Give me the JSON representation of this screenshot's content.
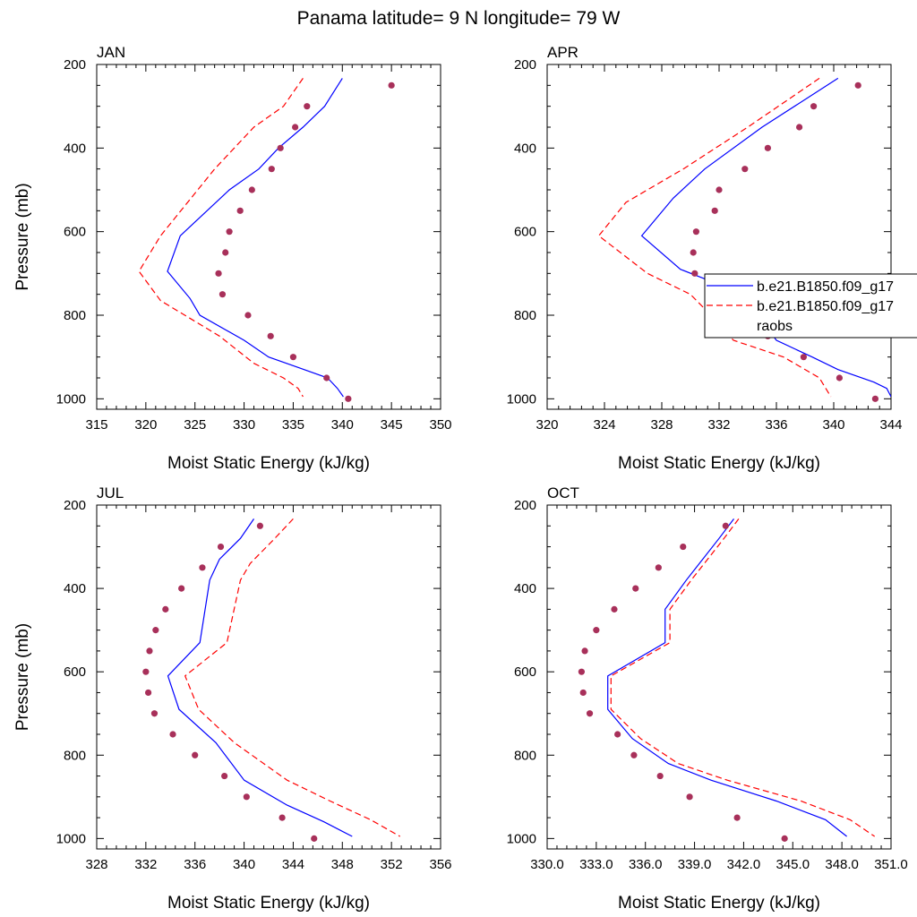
{
  "figure_title": "Panama  latitude= 9 N longitude= 79 W",
  "legend": {
    "entries": [
      {
        "label": "b.e21.B1850.f09_g17",
        "color": "#0000ff",
        "style": "solid"
      },
      {
        "label": "b.e21.B1850.f09_g17",
        "color": "#ff0000",
        "style": "dashed"
      },
      {
        "label": "raobs",
        "color": "#a8305a",
        "style": "markers"
      }
    ]
  },
  "chart_data": [
    {
      "type": "line",
      "title": "JAN",
      "xlabel": "Moist Static Energy (kJ/kg)",
      "ylabel": "Pressure (mb)",
      "xlim": [
        315,
        350
      ],
      "ylim": [
        1025,
        200
      ],
      "x_ticks": [
        315,
        320,
        325,
        330,
        335,
        340,
        345,
        350
      ],
      "x_tick_labels": [
        "315",
        "320",
        "325",
        "330",
        "335",
        "340",
        "345",
        "350"
      ],
      "y_ticks": [
        200,
        400,
        600,
        800,
        1000
      ],
      "y_tick_labels": [
        "200",
        "400",
        "600",
        "800",
        "1000"
      ],
      "series": [
        {
          "style": "solid",
          "color": "#0000ff",
          "x": [
            340.0,
            338.2,
            336.0,
            333.5,
            331.5,
            328.5,
            323.5,
            322.2,
            324.5,
            325.5,
            330.0,
            332.5,
            335.5,
            338.5,
            339.5,
            340.1
          ],
          "y": [
            233,
            300,
            350,
            400,
            450,
            500,
            610,
            695,
            760,
            800,
            860,
            900,
            925,
            950,
            975,
            995
          ]
        },
        {
          "style": "dashed",
          "color": "#ff0000",
          "x": [
            336.0,
            334.0,
            331.0,
            329.0,
            327.0,
            321.5,
            319.3,
            321.5,
            327.5,
            331.0,
            334.0,
            335.5,
            336.0
          ],
          "y": [
            233,
            300,
            350,
            400,
            450,
            610,
            695,
            765,
            850,
            915,
            950,
            975,
            995
          ]
        },
        {
          "style": "markers",
          "color": "#a8305a",
          "x": [
            345.0,
            336.4,
            335.2,
            333.7,
            332.8,
            330.8,
            329.6,
            328.5,
            328.1,
            327.4,
            327.8,
            330.4,
            332.7,
            335.0,
            338.4,
            340.6
          ],
          "y": [
            250,
            300,
            350,
            400,
            450,
            500,
            550,
            600,
            650,
            700,
            750,
            800,
            850,
            900,
            950,
            1000
          ]
        }
      ]
    },
    {
      "type": "line",
      "title": "APR",
      "xlabel": "Moist Static Energy (kJ/kg)",
      "ylabel": "",
      "xlim": [
        320,
        344
      ],
      "ylim": [
        1025,
        200
      ],
      "x_ticks": [
        320,
        324,
        328,
        332,
        336,
        340,
        344
      ],
      "x_tick_labels": [
        "320",
        "324",
        "328",
        "332",
        "336",
        "340",
        "344"
      ],
      "y_ticks": [
        200,
        400,
        600,
        800,
        1000
      ],
      "y_tick_labels": [
        "200",
        "400",
        "600",
        "800",
        "1000"
      ],
      "series": [
        {
          "style": "solid",
          "color": "#0000ff",
          "x": [
            340.3,
            335.0,
            331.0,
            328.8,
            326.6,
            329.3,
            333.0,
            334.7,
            336.0,
            338.5,
            340.3,
            342.8,
            343.7,
            344.0
          ],
          "y": [
            233,
            350,
            450,
            520,
            610,
            690,
            740,
            800,
            860,
            900,
            930,
            960,
            975,
            995
          ]
        },
        {
          "style": "dashed",
          "color": "#ff0000",
          "x": [
            339.0,
            334.0,
            329.5,
            325.5,
            323.6,
            327.0,
            330.0,
            332.0,
            333.0,
            336.5,
            339.0,
            339.8
          ],
          "y": [
            233,
            350,
            450,
            530,
            610,
            700,
            750,
            820,
            860,
            900,
            950,
            995
          ]
        },
        {
          "style": "markers",
          "color": "#a8305a",
          "x": [
            341.7,
            338.6,
            337.6,
            335.4,
            333.8,
            332.0,
            331.7,
            330.4,
            330.2,
            330.3,
            332.2,
            334.0,
            332.8,
            335.4,
            337.9,
            340.4,
            342.9
          ],
          "y": [
            250,
            300,
            350,
            400,
            450,
            500,
            550,
            600,
            650,
            700,
            750,
            800,
            825,
            850,
            900,
            950,
            1000
          ]
        }
      ]
    },
    {
      "type": "line",
      "title": "JUL",
      "xlabel": "Moist Static Energy (kJ/kg)",
      "ylabel": "Pressure (mb)",
      "xlim": [
        328,
        356
      ],
      "ylim": [
        1025,
        200
      ],
      "x_ticks": [
        328,
        332,
        336,
        340,
        344,
        348,
        352,
        356
      ],
      "x_tick_labels": [
        "328",
        "332",
        "336",
        "340",
        "344",
        "348",
        "352",
        "356"
      ],
      "y_ticks": [
        200,
        400,
        600,
        800,
        1000
      ],
      "y_tick_labels": [
        "200",
        "400",
        "600",
        "800",
        "1000"
      ],
      "series": [
        {
          "style": "solid",
          "color": "#0000ff",
          "x": [
            340.8,
            339.7,
            338.0,
            337.2,
            336.4,
            333.8,
            334.7,
            337.7,
            340.0,
            343.5,
            346.5,
            348.8
          ],
          "y": [
            233,
            280,
            330,
            380,
            530,
            610,
            690,
            770,
            860,
            920,
            960,
            995
          ]
        },
        {
          "style": "dashed",
          "color": "#ff0000",
          "x": [
            344.0,
            342.5,
            340.5,
            339.7,
            338.6,
            335.2,
            336.3,
            339.2,
            343.5,
            347.0,
            350.3,
            352.7
          ],
          "y": [
            233,
            280,
            340,
            380,
            530,
            610,
            690,
            770,
            860,
            910,
            955,
            995
          ]
        },
        {
          "style": "markers",
          "color": "#a8305a",
          "x": [
            341.3,
            338.1,
            336.6,
            334.9,
            333.6,
            332.8,
            332.3,
            332.0,
            332.2,
            332.7,
            334.2,
            336.0,
            338.4,
            340.2,
            343.1,
            345.7
          ],
          "y": [
            250,
            300,
            350,
            400,
            450,
            500,
            550,
            600,
            650,
            700,
            750,
            800,
            850,
            900,
            950,
            1000
          ]
        }
      ]
    },
    {
      "type": "line",
      "title": "OCT",
      "xlabel": "Moist Static Energy (kJ/kg)",
      "ylabel": "",
      "xlim": [
        330,
        351
      ],
      "ylim": [
        1025,
        200
      ],
      "x_ticks": [
        330,
        333,
        336,
        339,
        342,
        345,
        348,
        351
      ],
      "x_tick_labels": [
        "330.0",
        "333.0",
        "336.0",
        "339.0",
        "342.0",
        "345.0",
        "348.0",
        "351.0"
      ],
      "y_ticks": [
        200,
        400,
        600,
        800,
        1000
      ],
      "y_tick_labels": [
        "200",
        "400",
        "600",
        "800",
        "1000"
      ],
      "series": [
        {
          "style": "solid",
          "color": "#0000ff",
          "x": [
            341.4,
            340.5,
            338.5,
            337.2,
            337.2,
            333.7,
            333.7,
            335.2,
            337.4,
            340.0,
            344.0,
            347.0,
            348.3
          ],
          "y": [
            233,
            280,
            380,
            450,
            530,
            610,
            690,
            760,
            820,
            860,
            910,
            955,
            995
          ]
        },
        {
          "style": "dashed",
          "color": "#ff0000",
          "x": [
            341.7,
            340.8,
            338.8,
            337.5,
            337.5,
            333.9,
            333.9,
            335.7,
            338.0,
            341.0,
            345.5,
            348.5,
            350.0
          ],
          "y": [
            233,
            280,
            380,
            450,
            530,
            610,
            690,
            760,
            820,
            860,
            910,
            955,
            995
          ]
        },
        {
          "style": "markers",
          "color": "#a8305a",
          "x": [
            340.9,
            338.3,
            336.8,
            335.4,
            334.1,
            333.0,
            332.3,
            332.1,
            332.2,
            332.6,
            334.3,
            335.3,
            336.9,
            338.7,
            341.6,
            344.5
          ],
          "y": [
            250,
            300,
            350,
            400,
            450,
            500,
            550,
            600,
            650,
            700,
            750,
            800,
            850,
            900,
            950,
            1000
          ]
        }
      ]
    }
  ]
}
